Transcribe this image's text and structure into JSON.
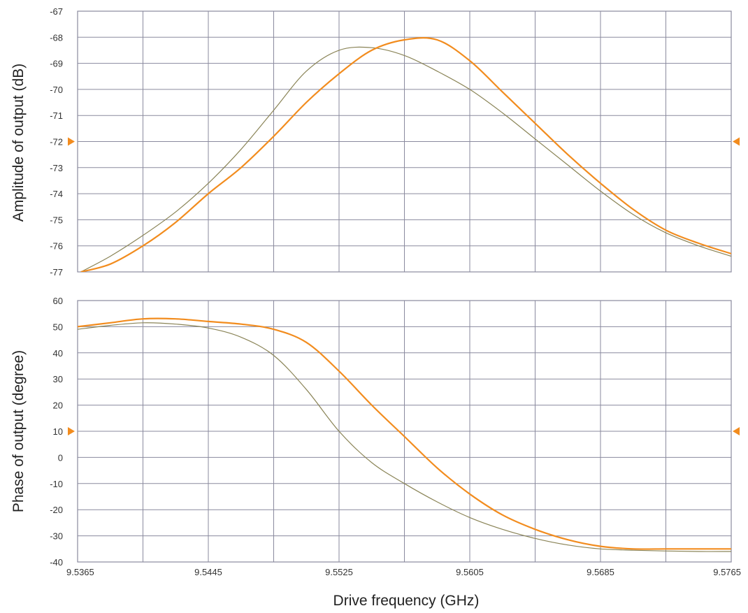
{
  "colors": {
    "grid": "#8a8a9e",
    "frame": "#8a8a9e",
    "series_measured": "#f28c1e",
    "series_model": "#8a8457",
    "marker": "#f28c1e",
    "text": "#333333"
  },
  "x_axis": {
    "label": "Drive frequency (GHz)",
    "range": [
      9.5365,
      9.5765
    ],
    "gridlines": [
      9.5365,
      9.5405,
      9.5445,
      9.5485,
      9.5525,
      9.5565,
      9.5605,
      9.5645,
      9.5685,
      9.5725,
      9.5765
    ],
    "tick_values": [
      9.5365,
      9.5445,
      9.5525,
      9.5605,
      9.5685,
      9.5765
    ],
    "tick_labels": [
      "9.5365",
      "9.5445",
      "9.5525",
      "9.5605",
      "9.5685",
      "9.5765"
    ]
  },
  "chart_data": [
    {
      "type": "line",
      "ylabel": "Amplitude of output (dB)",
      "xlim": [
        9.5365,
        9.5765
      ],
      "ylim": [
        -77,
        -67
      ],
      "yticks": [
        -67,
        -68,
        -69,
        -70,
        -71,
        -72,
        -73,
        -74,
        -75,
        -76,
        -77
      ],
      "ytick_labels": [
        "-67",
        "-68",
        "-69",
        "-70",
        "-71",
        "-72",
        "-73",
        "-74",
        "-75",
        "-76",
        "-77"
      ],
      "marker_level": -72,
      "grid": true,
      "series": [
        {
          "key": "model",
          "color": "#8a8457",
          "x": [
            9.5367,
            9.5385,
            9.5405,
            9.5425,
            9.5445,
            9.5465,
            9.5485,
            9.5505,
            9.5525,
            9.5545,
            9.5565,
            9.5585,
            9.5605,
            9.5625,
            9.5645,
            9.5665,
            9.5685,
            9.5705,
            9.5725,
            9.5745,
            9.5765
          ],
          "y": [
            -77.0,
            -76.4,
            -75.6,
            -74.7,
            -73.6,
            -72.3,
            -70.8,
            -69.3,
            -68.5,
            -68.4,
            -68.7,
            -69.3,
            -70.0,
            -70.9,
            -71.9,
            -72.9,
            -73.9,
            -74.8,
            -75.5,
            -76.0,
            -76.4
          ]
        },
        {
          "key": "measured",
          "color": "#f28c1e",
          "x": [
            9.5367,
            9.5385,
            9.5405,
            9.5425,
            9.5445,
            9.5465,
            9.5485,
            9.5505,
            9.5525,
            9.5545,
            9.5565,
            9.5585,
            9.5605,
            9.5625,
            9.5645,
            9.5665,
            9.5685,
            9.5705,
            9.5725,
            9.5745,
            9.5765
          ],
          "y": [
            -77.0,
            -76.7,
            -76.0,
            -75.1,
            -74.0,
            -73.0,
            -71.8,
            -70.5,
            -69.4,
            -68.5,
            -68.1,
            -68.1,
            -68.9,
            -70.1,
            -71.3,
            -72.5,
            -73.6,
            -74.6,
            -75.4,
            -75.9,
            -76.3
          ]
        }
      ]
    },
    {
      "type": "line",
      "ylabel": "Phase of output (degree)",
      "xlim": [
        9.5365,
        9.5765
      ],
      "ylim": [
        -40,
        60
      ],
      "yticks": [
        60,
        50,
        40,
        30,
        20,
        10,
        0,
        -10,
        -20,
        -30,
        -40
      ],
      "ytick_labels": [
        "60",
        "50",
        "40",
        "30",
        "20",
        "10",
        "0",
        "-10",
        "-20",
        "-30",
        "-40"
      ],
      "marker_level": 10,
      "grid": true,
      "series": [
        {
          "key": "model",
          "color": "#8a8457",
          "x": [
            9.5365,
            9.5385,
            9.5405,
            9.5425,
            9.5445,
            9.5465,
            9.5485,
            9.5505,
            9.5525,
            9.5545,
            9.5565,
            9.5585,
            9.5605,
            9.5625,
            9.5645,
            9.5665,
            9.5685,
            9.5705,
            9.5725,
            9.5745,
            9.5765
          ],
          "y": [
            49,
            50.5,
            51.5,
            51,
            49.5,
            46,
            39,
            26,
            10,
            -2,
            -10,
            -17,
            -23,
            -27.5,
            -31,
            -33.5,
            -35,
            -35.5,
            -35.8,
            -36,
            -36
          ]
        },
        {
          "key": "measured",
          "color": "#f28c1e",
          "x": [
            9.5365,
            9.5385,
            9.5405,
            9.5425,
            9.5445,
            9.5465,
            9.5485,
            9.5505,
            9.5525,
            9.5545,
            9.5565,
            9.5585,
            9.5605,
            9.5625,
            9.5645,
            9.5665,
            9.5685,
            9.5705,
            9.5725,
            9.5745,
            9.5765
          ],
          "y": [
            50,
            51.5,
            53,
            53,
            52,
            51,
            49,
            44,
            33,
            20,
            8,
            -4,
            -14,
            -22,
            -27.5,
            -31.5,
            -34,
            -35,
            -35,
            -35,
            -35
          ]
        }
      ]
    }
  ]
}
